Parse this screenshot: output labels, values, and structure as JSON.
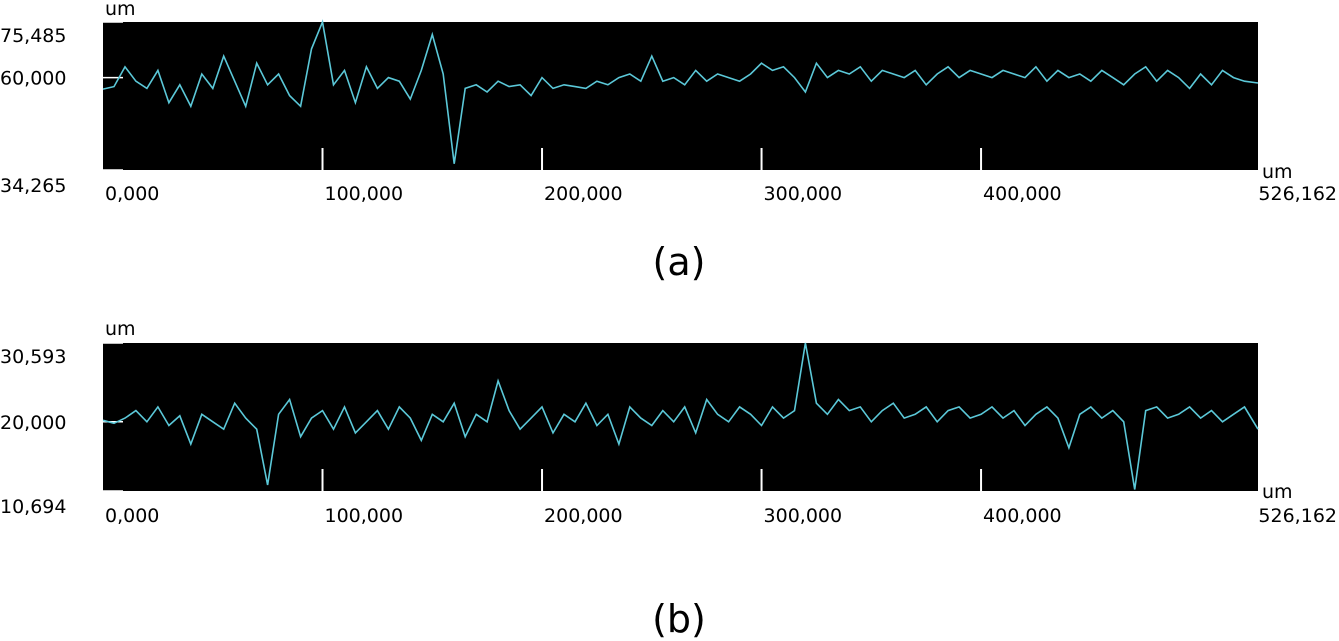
{
  "chart_data": [
    {
      "type": "line",
      "caption": "(a)",
      "ylabel": "um",
      "xlabel": "um",
      "ylim": [
        34265,
        75485
      ],
      "xlim": [
        0,
        526162
      ],
      "y_tick_labels": [
        "75,485",
        "60,000",
        "34,265"
      ],
      "y_ticks": [
        75485,
        60000,
        34265
      ],
      "x_tick_labels": [
        "0,000",
        "100,000",
        "200,000",
        "300,000",
        "400,000",
        "526,162"
      ],
      "x_ticks": [
        0,
        100000,
        200000,
        300000,
        400000,
        526162
      ],
      "background": "#000000",
      "line_color": "#5bc8d8",
      "series": [
        {
          "x": [
            0,
            5000,
            10000,
            15000,
            20000,
            25000,
            30000,
            35000,
            40000,
            45000,
            50000,
            55000,
            60000,
            65000,
            70000,
            75000,
            80000,
            85000,
            90000,
            95000,
            100000,
            105000,
            110000,
            115000,
            120000,
            125000,
            130000,
            135000,
            140000,
            145000,
            150000,
            155000,
            160000,
            165000,
            170000,
            175000,
            180000,
            185000,
            190000,
            195000,
            200000,
            205000,
            210000,
            215000,
            220000,
            225000,
            230000,
            235000,
            240000,
            245000,
            250000,
            255000,
            260000,
            265000,
            270000,
            275000,
            280000,
            285000,
            290000,
            295000,
            300000,
            305000,
            310000,
            315000,
            320000,
            325000,
            330000,
            335000,
            340000,
            345000,
            350000,
            355000,
            360000,
            365000,
            370000,
            375000,
            380000,
            385000,
            390000,
            395000,
            400000,
            405000,
            410000,
            415000,
            420000,
            425000,
            430000,
            435000,
            440000,
            445000,
            450000,
            455000,
            460000,
            465000,
            470000,
            475000,
            480000,
            485000,
            490000,
            495000,
            500000,
            505000,
            510000,
            515000,
            520000,
            526162
          ],
          "y": [
            56800,
            57500,
            63000,
            59000,
            57000,
            62000,
            53000,
            58000,
            52000,
            61000,
            57000,
            66000,
            59000,
            52000,
            64000,
            58000,
            61000,
            55000,
            52000,
            68000,
            75485,
            58000,
            62000,
            53000,
            63000,
            57000,
            60000,
            59000,
            54000,
            62000,
            72000,
            61000,
            36000,
            57000,
            58000,
            56000,
            59000,
            57500,
            58000,
            55000,
            60000,
            57000,
            58000,
            57500,
            57000,
            59000,
            58000,
            60000,
            61000,
            59000,
            66000,
            59000,
            60000,
            58000,
            62000,
            59000,
            61000,
            60000,
            59000,
            61000,
            64000,
            62000,
            63000,
            60000,
            56000,
            64000,
            60000,
            62000,
            61000,
            63000,
            59000,
            62000,
            61000,
            60000,
            62000,
            58000,
            61000,
            63000,
            60000,
            62000,
            61000,
            60000,
            62000,
            61000,
            60000,
            63000,
            59000,
            62000,
            60000,
            61000,
            59000,
            62000,
            60000,
            58000,
            61000,
            63000,
            59000,
            62000,
            60000,
            57000,
            61000,
            58000,
            62000,
            60000,
            59000,
            58500
          ]
        }
      ]
    },
    {
      "type": "line",
      "caption": "(b)",
      "ylabel": "um",
      "xlabel": "um",
      "ylim": [
        10694,
        30593
      ],
      "xlim": [
        0,
        526162
      ],
      "y_tick_labels": [
        "30,593",
        "20,000",
        "10,694"
      ],
      "y_ticks": [
        30593,
        20000,
        10694
      ],
      "x_tick_labels": [
        "0,000",
        "100,000",
        "200,000",
        "300,000",
        "400,000",
        "526,162"
      ],
      "x_ticks": [
        0,
        100000,
        200000,
        300000,
        400000,
        526162
      ],
      "background": "#000000",
      "line_color": "#5bc8d8",
      "series": [
        {
          "x": [
            0,
            5000,
            10000,
            15000,
            20000,
            25000,
            30000,
            35000,
            40000,
            45000,
            50000,
            55000,
            60000,
            65000,
            70000,
            75000,
            80000,
            85000,
            90000,
            95000,
            100000,
            105000,
            110000,
            115000,
            120000,
            125000,
            130000,
            135000,
            140000,
            145000,
            150000,
            155000,
            160000,
            165000,
            170000,
            175000,
            180000,
            185000,
            190000,
            195000,
            200000,
            205000,
            210000,
            215000,
            220000,
            225000,
            230000,
            235000,
            240000,
            245000,
            250000,
            255000,
            260000,
            265000,
            270000,
            275000,
            280000,
            285000,
            290000,
            295000,
            300000,
            305000,
            310000,
            315000,
            320000,
            325000,
            330000,
            335000,
            340000,
            345000,
            350000,
            355000,
            360000,
            365000,
            370000,
            375000,
            380000,
            385000,
            390000,
            395000,
            400000,
            405000,
            410000,
            415000,
            420000,
            425000,
            430000,
            435000,
            440000,
            445000,
            450000,
            455000,
            460000,
            465000,
            470000,
            475000,
            480000,
            485000,
            490000,
            495000,
            500000,
            505000,
            510000,
            515000,
            520000,
            526162
          ],
          "y": [
            20200,
            19800,
            20500,
            21500,
            20000,
            22000,
            19500,
            20800,
            17000,
            21000,
            20000,
            19000,
            22500,
            20500,
            19000,
            11500,
            21000,
            23000,
            18000,
            20500,
            21500,
            19000,
            22000,
            18500,
            20000,
            21500,
            19000,
            22000,
            20500,
            17500,
            21000,
            20000,
            22500,
            18000,
            21000,
            20000,
            25500,
            21500,
            19000,
            20500,
            22000,
            18500,
            21000,
            20000,
            22500,
            19500,
            21000,
            17000,
            22000,
            20500,
            19500,
            21500,
            20000,
            22000,
            18500,
            23000,
            21000,
            20000,
            22000,
            21000,
            19500,
            22000,
            20500,
            21500,
            30593,
            22500,
            21000,
            23000,
            21500,
            22000,
            20000,
            21500,
            22500,
            20500,
            21000,
            22000,
            20000,
            21500,
            22000,
            20500,
            21000,
            22000,
            20500,
            21500,
            19500,
            21000,
            22000,
            20500,
            16500,
            21000,
            22000,
            20500,
            21500,
            20000,
            10900,
            21500,
            22000,
            20500,
            21000,
            22000,
            20500,
            21500,
            20000,
            21000,
            22000,
            19000
          ]
        }
      ]
    }
  ]
}
